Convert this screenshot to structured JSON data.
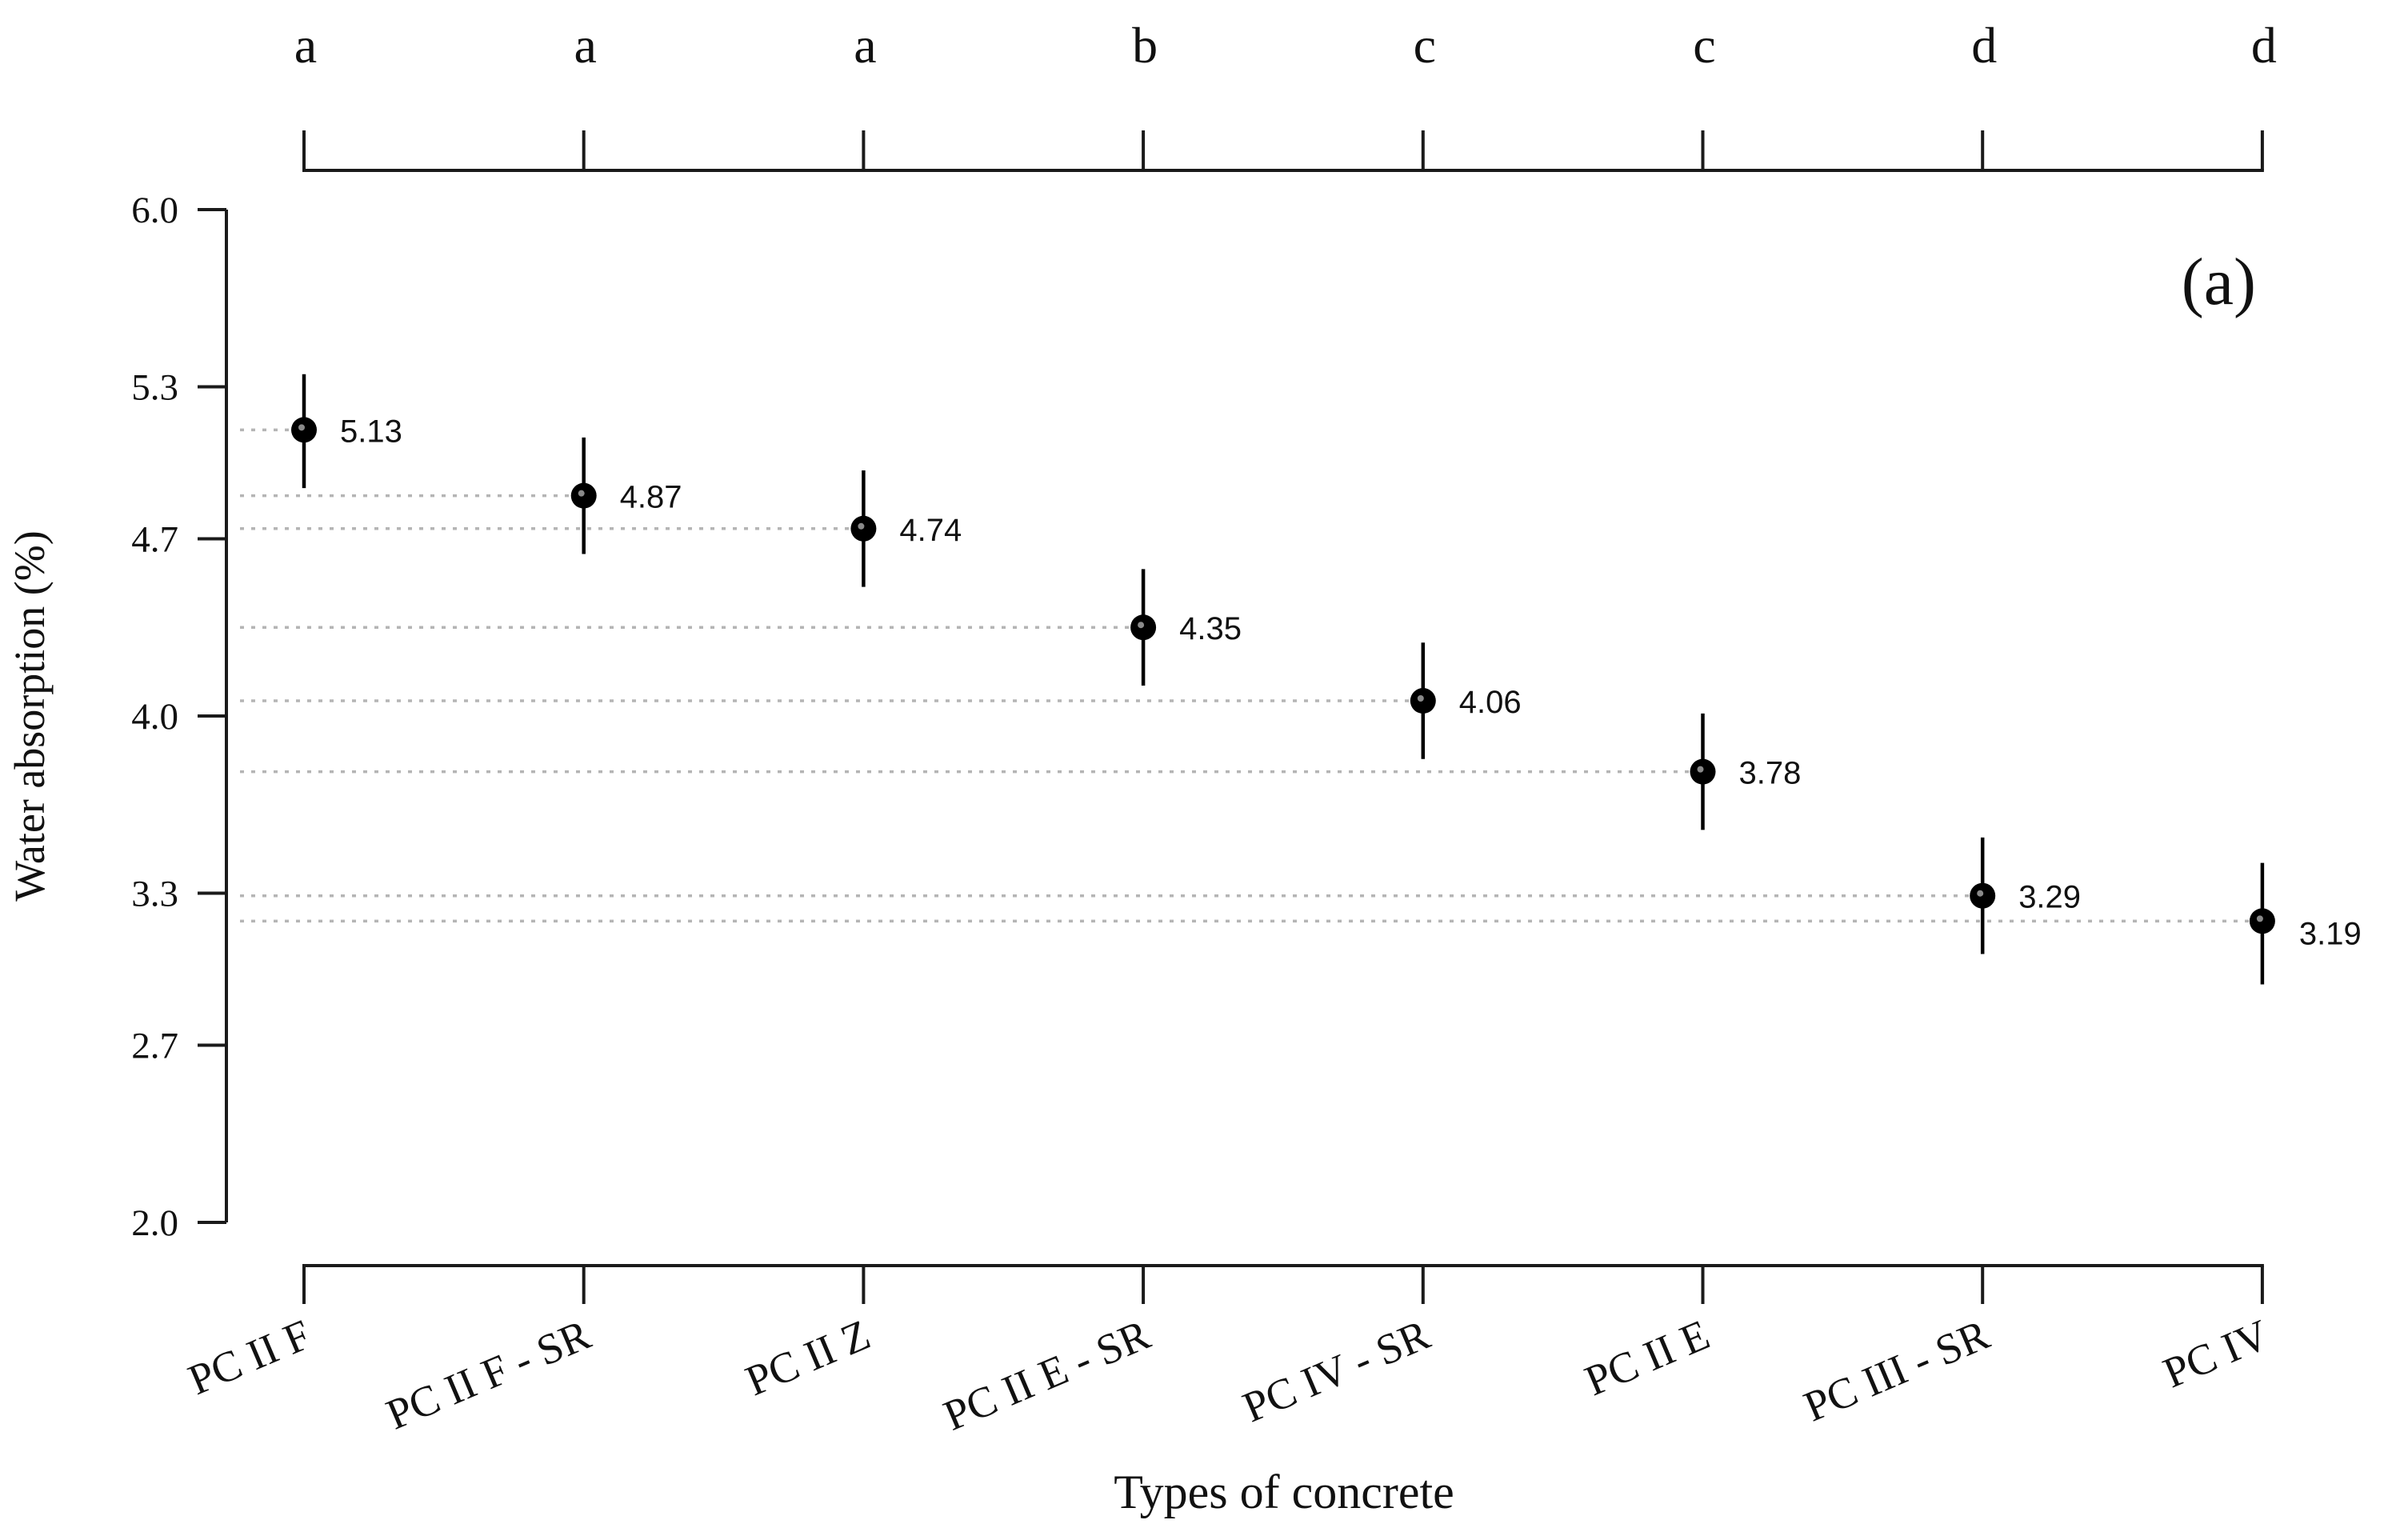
{
  "chart_data": {
    "type": "scatter",
    "title": "",
    "panel_label": "(a)",
    "xlabel": "Types of concrete",
    "ylabel": "Water absorption (%)",
    "ylim": [
      2.0,
      6.0
    ],
    "yticks": [
      "2.0",
      "2.7",
      "3.3",
      "4.0",
      "4.7",
      "5.3",
      "6.0"
    ],
    "categories": [
      "PC II F",
      "PC II F - SR",
      "PC II Z",
      "PC II E - SR",
      "PC IV - SR",
      "PC II E",
      "PC III - SR",
      "PC IV"
    ],
    "values": [
      5.13,
      4.87,
      4.74,
      4.35,
      4.06,
      3.78,
      3.29,
      3.19
    ],
    "value_labels": [
      "5.13",
      "4.87",
      "4.74",
      "4.35",
      "4.06",
      "3.78",
      "3.29",
      "3.19"
    ],
    "error_low": [
      4.9,
      4.64,
      4.51,
      4.12,
      3.83,
      3.55,
      3.06,
      2.94
    ],
    "error_high": [
      5.35,
      5.1,
      4.97,
      4.58,
      4.29,
      4.01,
      3.52,
      3.42
    ],
    "group_letters": [
      "a",
      "a",
      "a",
      "b",
      "c",
      "c",
      "d",
      "d"
    ],
    "grid": false,
    "reference_lines": "dotted horizontal lines from the y-axis to each point"
  }
}
